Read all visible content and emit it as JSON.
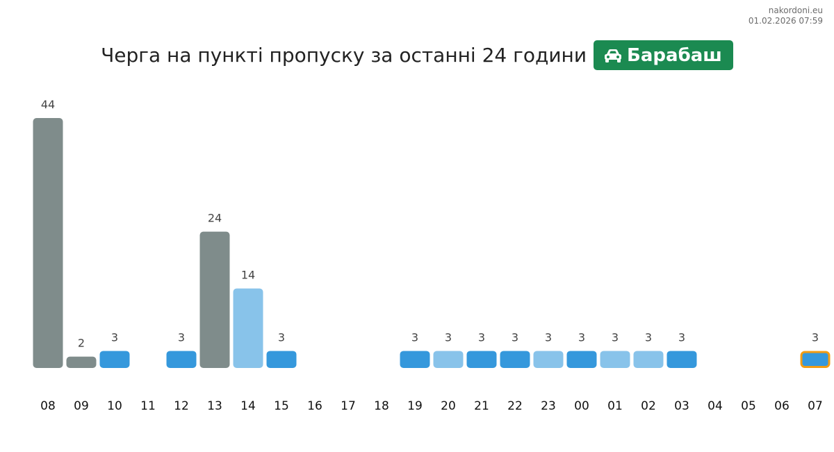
{
  "source": {
    "site": "nakordoni.eu",
    "datetime": "01.02.2026 07:59"
  },
  "header": {
    "title": "Черга на пункті пропуску за останні 24 години",
    "checkpoint_name": "Барабаш",
    "checkpoint_icon": "car-icon",
    "badge_color": "#1b8a51"
  },
  "colors": {
    "gray": "#7f8c8b",
    "blue": "#3598dc",
    "light_blue": "#88c3ea",
    "highlight_border": "#f39c12"
  },
  "chart_data": {
    "type": "bar",
    "title": "Черга на пункті пропуску за останні 24 години",
    "xlabel": "",
    "ylabel": "",
    "ylim": [
      0,
      44
    ],
    "grid": false,
    "categories": [
      "08",
      "09",
      "10",
      "11",
      "12",
      "13",
      "14",
      "15",
      "16",
      "17",
      "18",
      "19",
      "20",
      "21",
      "22",
      "23",
      "00",
      "01",
      "02",
      "03",
      "04",
      "05",
      "06",
      "07"
    ],
    "values": [
      44,
      2,
      3,
      null,
      3,
      24,
      14,
      3,
      null,
      null,
      null,
      3,
      3,
      3,
      3,
      3,
      3,
      3,
      3,
      3,
      null,
      null,
      null,
      3
    ],
    "colors": [
      "gray",
      "gray",
      "blue",
      null,
      "blue",
      "gray",
      "light_blue",
      "blue",
      null,
      null,
      null,
      "blue",
      "light_blue",
      "blue",
      "blue",
      "light_blue",
      "blue",
      "light_blue",
      "light_blue",
      "blue",
      null,
      null,
      null,
      "blue"
    ],
    "highlighted_category": "07"
  }
}
